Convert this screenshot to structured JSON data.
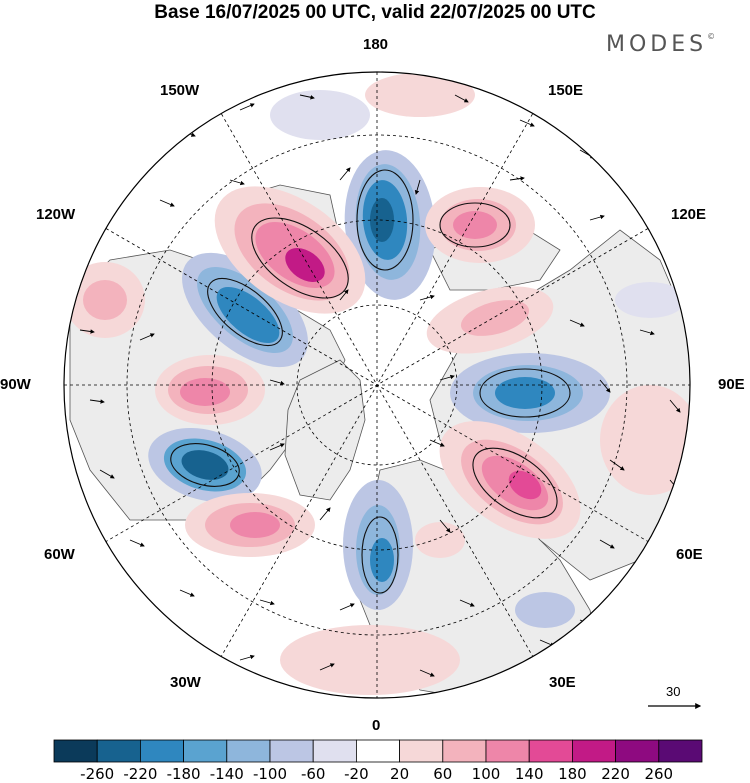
{
  "title": "Base 16/07/2025 00 UTC, valid 22/07/2025 00 UTC",
  "brand": "MODES",
  "brand_mark": "©",
  "longitude_labels": {
    "lon_180": "180",
    "lon_150w": "150W",
    "lon_150e": "150E",
    "lon_120w": "120W",
    "lon_120e": "120E",
    "lon_90w": "90W",
    "lon_90e": "90E",
    "lon_60w": "60W",
    "lon_60e": "60E",
    "lon_30w": "30W",
    "lon_30e": "30E",
    "lon_0": "0"
  },
  "reference_vector": "30",
  "colorbar": {
    "ticks": [
      "-260",
      "-220",
      "-180",
      "-140",
      "-100",
      "-60",
      "-20",
      "20",
      "60",
      "100",
      "140",
      "180",
      "220",
      "260"
    ],
    "colors": [
      "#0b3a5a",
      "#17628f",
      "#2f87bf",
      "#5aa3d0",
      "#8eb6dc",
      "#bcc6e4",
      "#e0e0ef",
      "#ffffff",
      "#f6d8d8",
      "#f3b3bd",
      "#ee86a9",
      "#e34a96",
      "#c21a86",
      "#8e0a80",
      "#5a0a74"
    ]
  },
  "colors": {
    "land": "#ececec",
    "neg_strong": "#17628f",
    "neg_mid": "#5aa3d0",
    "neg_weak": "#bcc6e4",
    "pos_weak": "#f6d8d8",
    "pos_mid": "#ee86a9",
    "pos_strong": "#c21a86"
  }
}
